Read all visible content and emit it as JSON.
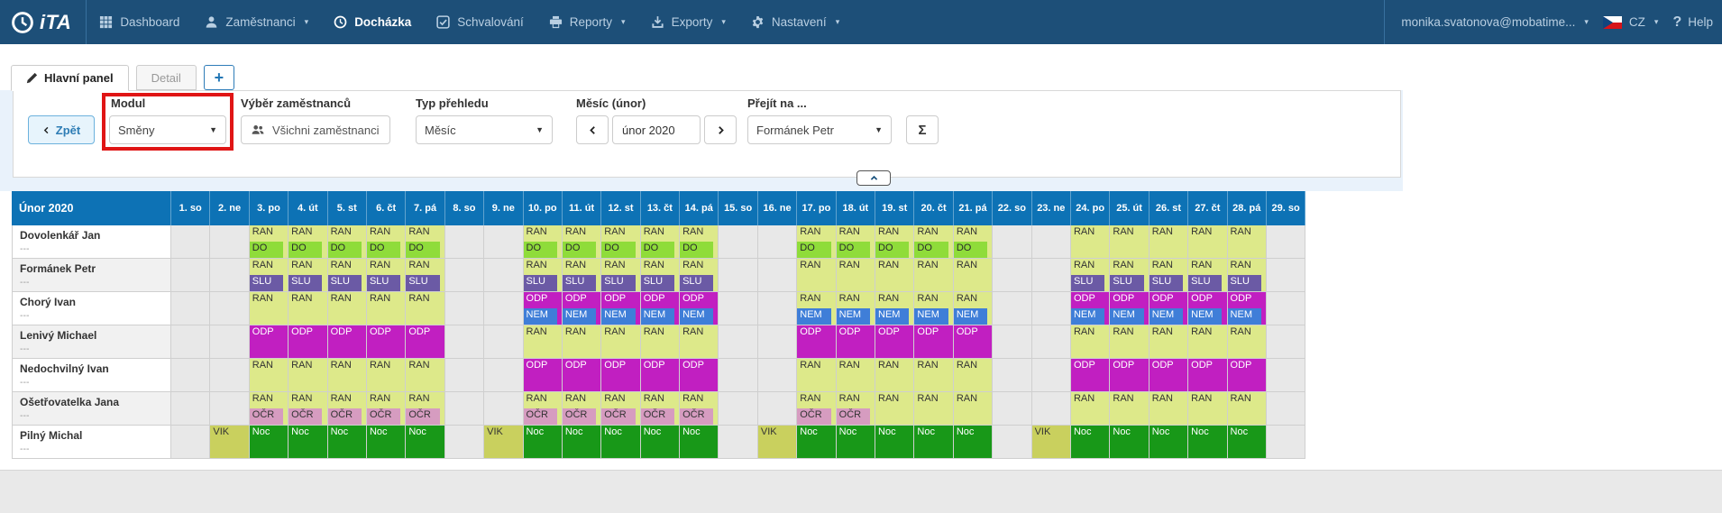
{
  "navbar": {
    "logo_text": "iTA",
    "items": [
      {
        "key": "dashboard",
        "label": "Dashboard",
        "icon": "grid-icon",
        "caret": false,
        "active": false
      },
      {
        "key": "zamestnanci",
        "label": "Zaměstnanci",
        "icon": "user-icon",
        "caret": true,
        "active": false
      },
      {
        "key": "dochazka",
        "label": "Docházka",
        "icon": "clock-icon",
        "caret": false,
        "active": true
      },
      {
        "key": "schvalovani",
        "label": "Schvalování",
        "icon": "check-icon",
        "caret": false,
        "active": false
      },
      {
        "key": "reporty",
        "label": "Reporty",
        "icon": "printer-icon",
        "caret": true,
        "active": false
      },
      {
        "key": "exporty",
        "label": "Exporty",
        "icon": "export-icon",
        "caret": true,
        "active": false
      },
      {
        "key": "nastaveni",
        "label": "Nastavení",
        "icon": "gear-icon",
        "caret": true,
        "active": false
      }
    ],
    "user": "monika.svatonova@mobatime...",
    "language": "CZ",
    "help_label": "Help"
  },
  "tabs": [
    {
      "label": "Hlavní panel",
      "active": true
    },
    {
      "label": "Detail",
      "active": false
    },
    {
      "label": "+",
      "add": true
    }
  ],
  "filters": {
    "back_label": "Zpět",
    "modul": {
      "label": "Modul",
      "value": "Směny",
      "highlight_color": "#e01515"
    },
    "employees": {
      "label": "Výběr zaměstnanců",
      "value": "Všichni zaměstnanci"
    },
    "view_type": {
      "label": "Typ přehledu",
      "value": "Měsíc"
    },
    "month": {
      "label": "Měsíc (únor)",
      "value": "únor 2020"
    },
    "goto": {
      "label": "Přejít na ...",
      "value": "Formánek Petr"
    },
    "sum_label": "Σ"
  },
  "schedule": {
    "title": "Únor 2020",
    "days": [
      "1. so",
      "2. ne",
      "3. po",
      "4. út",
      "5. st",
      "6. čt",
      "7. pá",
      "8. so",
      "9. ne",
      "10. po",
      "11. út",
      "12. st",
      "13. čt",
      "14. pá",
      "15. so",
      "16. ne",
      "17. po",
      "18. út",
      "19. st",
      "20. čt",
      "21. pá",
      "22. so",
      "23. ne",
      "24. po",
      "25. út",
      "26. st",
      "27. čt",
      "28. pá",
      "29. so"
    ],
    "weekend_days": [
      1,
      2,
      8,
      9,
      15,
      16,
      22,
      23,
      29
    ],
    "header_bg": "#0d72b5",
    "shift_types": {
      "RAN": {
        "bg": "#dde98a",
        "fg": "#333333"
      },
      "DO": {
        "bg": "#8fdc3a",
        "fg": "#2a2a2a"
      },
      "SLU": {
        "bg": "#6b5aa5",
        "fg": "#ffffff"
      },
      "NEM": {
        "bg": "#3f7ed8",
        "fg": "#ffffff"
      },
      "ODP": {
        "bg": "#c11fc1",
        "fg": "#ffffff"
      },
      "OČR": {
        "bg": "#d69cc0",
        "fg": "#333333"
      },
      "Noc": {
        "bg": "#189818",
        "fg": "#ffffff"
      },
      "VIK": {
        "bg": "#c9d05e",
        "fg": "#333333"
      }
    },
    "employees": [
      {
        "name": "Dovolenkář Jan",
        "note": "---",
        "shifts": {
          "3": [
            "RAN",
            "DO"
          ],
          "4": [
            "RAN",
            "DO"
          ],
          "5": [
            "RAN",
            "DO"
          ],
          "6": [
            "RAN",
            "DO"
          ],
          "7": [
            "RAN",
            "DO"
          ],
          "10": [
            "RAN",
            "DO"
          ],
          "11": [
            "RAN",
            "DO"
          ],
          "12": [
            "RAN",
            "DO"
          ],
          "13": [
            "RAN",
            "DO"
          ],
          "14": [
            "RAN",
            "DO"
          ],
          "17": [
            "RAN",
            "DO"
          ],
          "18": [
            "RAN",
            "DO"
          ],
          "19": [
            "RAN",
            "DO"
          ],
          "20": [
            "RAN",
            "DO"
          ],
          "21": [
            "RAN",
            "DO"
          ],
          "24": [
            "RAN"
          ],
          "25": [
            "RAN"
          ],
          "26": [
            "RAN"
          ],
          "27": [
            "RAN"
          ],
          "28": [
            "RAN"
          ]
        }
      },
      {
        "name": "Formánek Petr",
        "note": "---",
        "shifts": {
          "3": [
            "RAN",
            "SLU"
          ],
          "4": [
            "RAN",
            "SLU"
          ],
          "5": [
            "RAN",
            "SLU"
          ],
          "6": [
            "RAN",
            "SLU"
          ],
          "7": [
            "RAN",
            "SLU"
          ],
          "10": [
            "RAN",
            "SLU"
          ],
          "11": [
            "RAN",
            "SLU"
          ],
          "12": [
            "RAN",
            "SLU"
          ],
          "13": [
            "RAN",
            "SLU"
          ],
          "14": [
            "RAN",
            "SLU"
          ],
          "17": [
            "RAN"
          ],
          "18": [
            "RAN"
          ],
          "19": [
            "RAN"
          ],
          "20": [
            "RAN"
          ],
          "21": [
            "RAN"
          ],
          "24": [
            "RAN",
            "SLU"
          ],
          "25": [
            "RAN",
            "SLU"
          ],
          "26": [
            "RAN",
            "SLU"
          ],
          "27": [
            "RAN",
            "SLU"
          ],
          "28": [
            "RAN",
            "SLU"
          ]
        }
      },
      {
        "name": "Chorý Ivan",
        "note": "---",
        "shifts": {
          "3": [
            "RAN"
          ],
          "4": [
            "RAN"
          ],
          "5": [
            "RAN"
          ],
          "6": [
            "RAN"
          ],
          "7": [
            "RAN"
          ],
          "10": [
            "ODP",
            "NEM"
          ],
          "11": [
            "ODP",
            "NEM"
          ],
          "12": [
            "ODP",
            "NEM"
          ],
          "13": [
            "ODP",
            "NEM"
          ],
          "14": [
            "ODP",
            "NEM"
          ],
          "17": [
            "RAN",
            "NEM"
          ],
          "18": [
            "RAN",
            "NEM"
          ],
          "19": [
            "RAN",
            "NEM"
          ],
          "20": [
            "RAN",
            "NEM"
          ],
          "21": [
            "RAN",
            "NEM"
          ],
          "24": [
            "ODP",
            "NEM"
          ],
          "25": [
            "ODP",
            "NEM"
          ],
          "26": [
            "ODP",
            "NEM"
          ],
          "27": [
            "ODP",
            "NEM"
          ],
          "28": [
            "ODP",
            "NEM"
          ]
        }
      },
      {
        "name": "Lenivý Michael",
        "note": "---",
        "shifts": {
          "3": [
            "ODP"
          ],
          "4": [
            "ODP"
          ],
          "5": [
            "ODP"
          ],
          "6": [
            "ODP"
          ],
          "7": [
            "ODP"
          ],
          "10": [
            "RAN"
          ],
          "11": [
            "RAN"
          ],
          "12": [
            "RAN"
          ],
          "13": [
            "RAN"
          ],
          "14": [
            "RAN"
          ],
          "17": [
            "ODP"
          ],
          "18": [
            "ODP"
          ],
          "19": [
            "ODP"
          ],
          "20": [
            "ODP"
          ],
          "21": [
            "ODP"
          ],
          "24": [
            "RAN"
          ],
          "25": [
            "RAN"
          ],
          "26": [
            "RAN"
          ],
          "27": [
            "RAN"
          ],
          "28": [
            "RAN"
          ]
        }
      },
      {
        "name": "Nedochvilný Ivan",
        "note": "---",
        "shifts": {
          "3": [
            "RAN"
          ],
          "4": [
            "RAN"
          ],
          "5": [
            "RAN"
          ],
          "6": [
            "RAN"
          ],
          "7": [
            "RAN"
          ],
          "10": [
            "ODP"
          ],
          "11": [
            "ODP"
          ],
          "12": [
            "ODP"
          ],
          "13": [
            "ODP"
          ],
          "14": [
            "ODP"
          ],
          "17": [
            "RAN"
          ],
          "18": [
            "RAN"
          ],
          "19": [
            "RAN"
          ],
          "20": [
            "RAN"
          ],
          "21": [
            "RAN"
          ],
          "24": [
            "ODP"
          ],
          "25": [
            "ODP"
          ],
          "26": [
            "ODP"
          ],
          "27": [
            "ODP"
          ],
          "28": [
            "ODP"
          ]
        }
      },
      {
        "name": "Ošetřovatelka Jana",
        "note": "---",
        "shifts": {
          "3": [
            "RAN",
            "OČR"
          ],
          "4": [
            "RAN",
            "OČR"
          ],
          "5": [
            "RAN",
            "OČR"
          ],
          "6": [
            "RAN",
            "OČR"
          ],
          "7": [
            "RAN",
            "OČR"
          ],
          "10": [
            "RAN",
            "OČR"
          ],
          "11": [
            "RAN",
            "OČR"
          ],
          "12": [
            "RAN",
            "OČR"
          ],
          "13": [
            "RAN",
            "OČR"
          ],
          "14": [
            "RAN",
            "OČR"
          ],
          "17": [
            "RAN",
            "OČR"
          ],
          "18": [
            "RAN",
            "OČR"
          ],
          "19": [
            "RAN"
          ],
          "20": [
            "RAN"
          ],
          "21": [
            "RAN"
          ],
          "24": [
            "RAN"
          ],
          "25": [
            "RAN"
          ],
          "26": [
            "RAN"
          ],
          "27": [
            "RAN"
          ],
          "28": [
            "RAN"
          ]
        }
      },
      {
        "name": "Pilný Michal",
        "note": "---",
        "shifts": {
          "2": [
            "VIK"
          ],
          "3": [
            "Noc"
          ],
          "4": [
            "Noc"
          ],
          "5": [
            "Noc"
          ],
          "6": [
            "Noc"
          ],
          "7": [
            "Noc"
          ],
          "9": [
            "VIK"
          ],
          "10": [
            "Noc"
          ],
          "11": [
            "Noc"
          ],
          "12": [
            "Noc"
          ],
          "13": [
            "Noc"
          ],
          "14": [
            "Noc"
          ],
          "16": [
            "VIK"
          ],
          "17": [
            "Noc"
          ],
          "18": [
            "Noc"
          ],
          "19": [
            "Noc"
          ],
          "20": [
            "Noc"
          ],
          "21": [
            "Noc"
          ],
          "23": [
            "VIK"
          ],
          "24": [
            "Noc"
          ],
          "25": [
            "Noc"
          ],
          "26": [
            "Noc"
          ],
          "27": [
            "Noc"
          ],
          "28": [
            "Noc"
          ]
        }
      }
    ]
  }
}
